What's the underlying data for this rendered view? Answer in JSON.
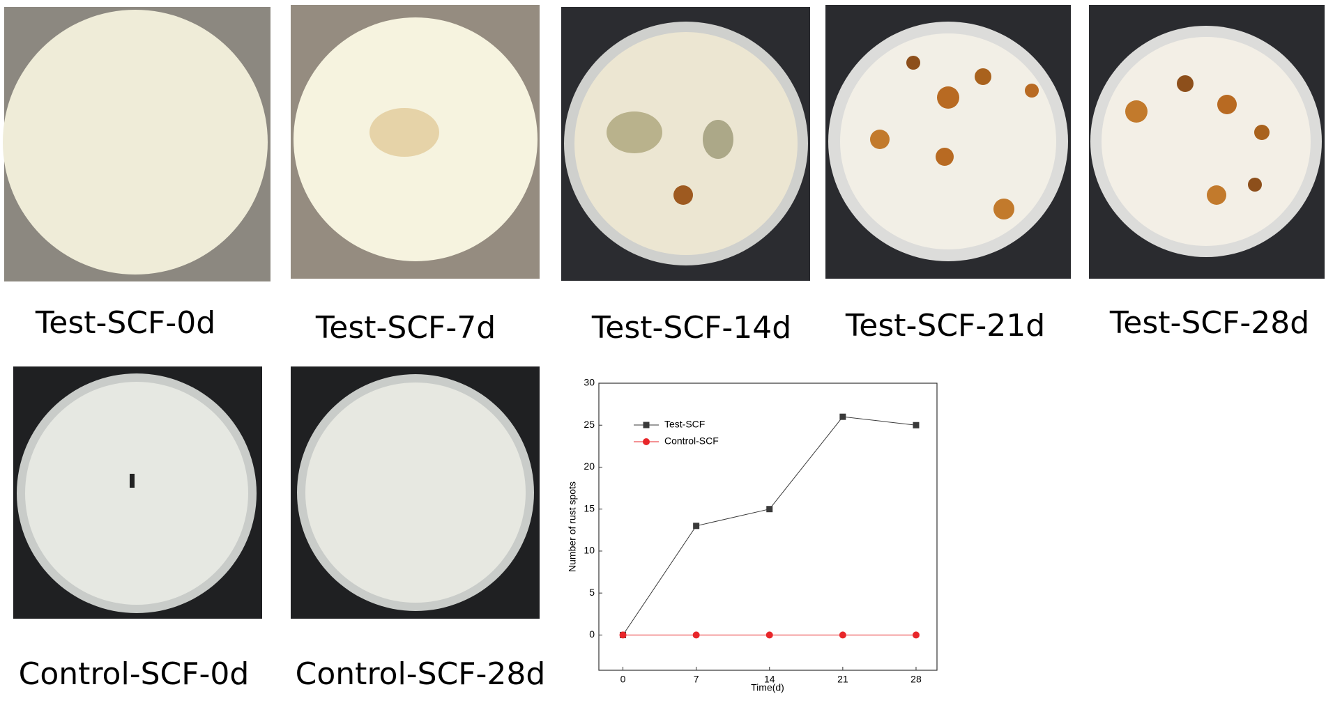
{
  "panels": [
    "Test-SCF-0d",
    "Test-SCF-7d",
    "Test-SCF-14d",
    "Test-SCF-21d",
    "Test-SCF-28d",
    "Control-SCF-0d",
    "Control-SCF-28d"
  ],
  "chart_data": {
    "type": "line",
    "x_label": "Time(d)",
    "y_label": "Number of rust spots",
    "x": [
      0,
      7,
      14,
      21,
      28
    ],
    "series": [
      {
        "name": "Test-SCF",
        "color": "#3a3a3a",
        "marker": "square",
        "values": [
          0,
          13,
          15,
          26,
          25
        ]
      },
      {
        "name": "Control-SCF",
        "color": "#e8262a",
        "marker": "circle",
        "values": [
          0,
          0,
          0,
          0,
          0
        ]
      }
    ],
    "xlim": [
      -2.3,
      30
    ],
    "ylim": [
      -4.2,
      30
    ],
    "xticks": [
      0,
      7,
      14,
      21,
      28
    ],
    "yticks": [
      0,
      5,
      10,
      15,
      20,
      25,
      30
    ],
    "legend": "upper-left"
  }
}
